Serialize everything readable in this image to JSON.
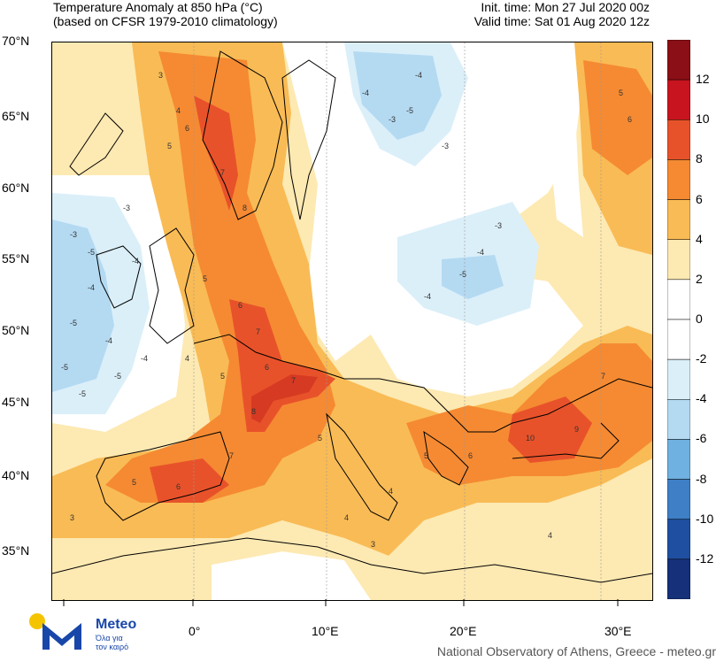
{
  "title": {
    "line1": "Temperature Anomaly at 850 hPa (°C)",
    "line2": "(based on CFSR 1979-2010 climatology)"
  },
  "times": {
    "init": "Init. time: Mon 27 Jul 2020 00z",
    "valid": "Valid time: Sat 01 Aug 2020 12z"
  },
  "axes": {
    "lat_labels": [
      "70°N",
      "65°N",
      "60°N",
      "55°N",
      "50°N",
      "45°N",
      "40°N",
      "35°N"
    ],
    "lon_labels": [
      "0°",
      "10°E",
      "20°E",
      "30°E"
    ]
  },
  "colorbar": {
    "labels": [
      "12",
      "10",
      "8",
      "6",
      "4",
      "2",
      "0",
      "-2",
      "-4",
      "-6",
      "-8",
      "-10",
      "-12"
    ],
    "colors": [
      "#8b0f16",
      "#c8141e",
      "#e8522a",
      "#f58a32",
      "#f9bb55",
      "#fde9b2",
      "#ffffff",
      "#ffffff",
      "#dbeff9",
      "#b4daf2",
      "#6fb1e0",
      "#3e7fc6",
      "#1f4fa0",
      "#16307a"
    ]
  },
  "branding": {
    "logo_name": "Meteo",
    "logo_tagline_1": "Όλα για",
    "logo_tagline_2": "τον καιρό",
    "footer": "National Observatory of Athens, Greece - meteo.gr"
  },
  "map_labels": {
    "cold_values": [
      "-3",
      "-4",
      "-5",
      "-4",
      "-5",
      "-3",
      "-4",
      "-5",
      "-4",
      "-3",
      "-4",
      "-5",
      "-3",
      "-4",
      "-5",
      "-3",
      "-4",
      "-5",
      "-4",
      "-5"
    ],
    "warm_values": [
      "3",
      "4",
      "5",
      "6",
      "7",
      "8",
      "5",
      "6",
      "7",
      "4",
      "5",
      "6",
      "7",
      "8",
      "9",
      "10",
      "7",
      "6",
      "5",
      "4",
      "3",
      "5",
      "6",
      "7",
      "5",
      "4",
      "3",
      "4",
      "5",
      "6"
    ]
  }
}
